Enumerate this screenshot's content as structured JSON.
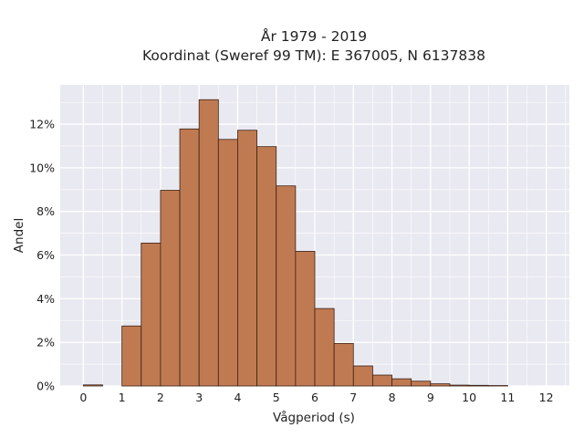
{
  "chart_data": {
    "type": "bar",
    "title_line1": "År 1979 - 2019",
    "title_line2": "Koordinat (Sweref 99 TM): E 367005, N 6137838",
    "xlabel": "Vågperiod (s)",
    "ylabel": "Andel",
    "x_ticks": [
      0,
      1,
      2,
      3,
      4,
      5,
      6,
      7,
      8,
      9,
      10,
      11,
      12
    ],
    "y_ticks": [
      0,
      2,
      4,
      6,
      8,
      10,
      12
    ],
    "y_tick_labels": [
      "0%",
      "2%",
      "4%",
      "6%",
      "8%",
      "10%",
      "12%"
    ],
    "xlim": [
      -0.6,
      12.6
    ],
    "ylim": [
      0,
      13.8
    ],
    "bin_width": 0.5,
    "bins": [
      {
        "start": 0.0,
        "value": 0.05
      },
      {
        "start": 1.0,
        "value": 2.75
      },
      {
        "start": 1.5,
        "value": 6.55
      },
      {
        "start": 2.0,
        "value": 8.97
      },
      {
        "start": 2.5,
        "value": 11.78
      },
      {
        "start": 3.0,
        "value": 13.12
      },
      {
        "start": 3.5,
        "value": 11.3
      },
      {
        "start": 4.0,
        "value": 11.72
      },
      {
        "start": 4.5,
        "value": 10.97
      },
      {
        "start": 5.0,
        "value": 9.17
      },
      {
        "start": 5.5,
        "value": 6.17
      },
      {
        "start": 6.0,
        "value": 3.55
      },
      {
        "start": 6.5,
        "value": 1.95
      },
      {
        "start": 7.0,
        "value": 0.92
      },
      {
        "start": 7.5,
        "value": 0.5
      },
      {
        "start": 8.0,
        "value": 0.33
      },
      {
        "start": 8.5,
        "value": 0.22
      },
      {
        "start": 9.0,
        "value": 0.1
      },
      {
        "start": 9.5,
        "value": 0.04
      },
      {
        "start": 10.0,
        "value": 0.03
      },
      {
        "start": 10.5,
        "value": 0.02
      }
    ],
    "grid": true,
    "colors": {
      "bar_fill": "#c07a52",
      "bar_edge": "#3a2216",
      "plot_bg": "#e9e9f1",
      "grid": "#ffffff"
    }
  }
}
